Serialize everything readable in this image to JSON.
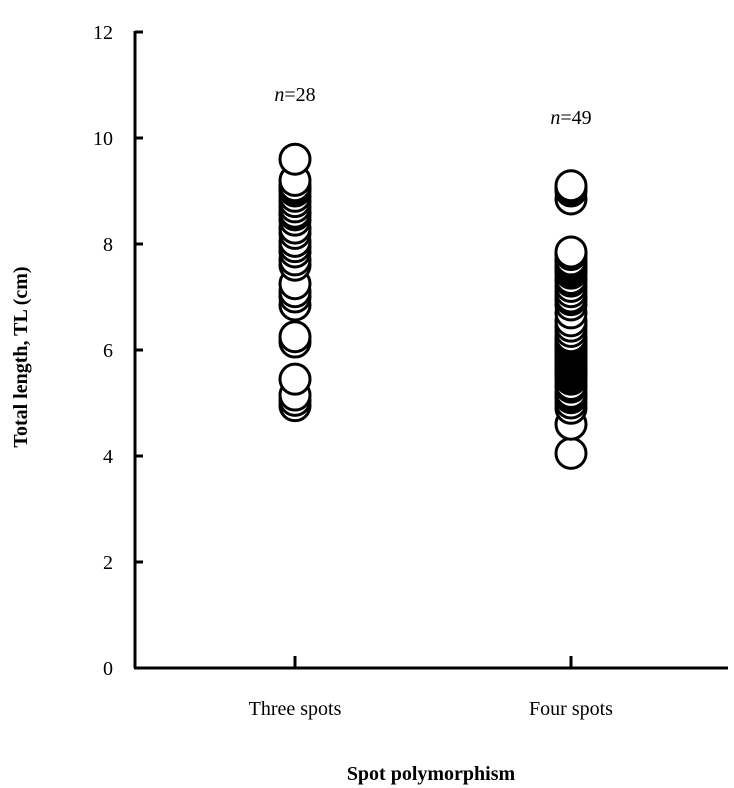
{
  "chart_data": {
    "type": "scatter",
    "xlabel": "Spot polymorphism",
    "ylabel": "Total length, TL (cm)",
    "ylim": [
      0,
      12
    ],
    "yticks": [
      0,
      2,
      4,
      6,
      8,
      10,
      12
    ],
    "grid": false,
    "categories": [
      "Three spots",
      "Four spots"
    ],
    "series": [
      {
        "category": "Three spots",
        "n_prefix": "n",
        "n_value": "=28",
        "values": [
          4.95,
          5.05,
          5.15,
          5.45,
          6.15,
          6.25,
          6.85,
          7.0,
          7.1,
          7.25,
          7.6,
          7.7,
          7.85,
          7.95,
          8.05,
          8.2,
          8.3,
          8.45,
          8.55,
          8.6,
          8.7,
          8.8,
          8.9,
          9.0,
          9.05,
          9.1,
          9.2,
          9.6
        ]
      },
      {
        "category": "Four spots",
        "n_prefix": "n",
        "n_value": "=49",
        "values": [
          4.05,
          4.6,
          4.9,
          5.0,
          5.1,
          5.15,
          5.2,
          5.3,
          5.35,
          5.45,
          5.5,
          5.55,
          5.6,
          5.65,
          5.7,
          5.75,
          5.8,
          5.85,
          5.9,
          5.95,
          6.0,
          6.05,
          6.1,
          6.15,
          6.2,
          6.25,
          6.35,
          6.45,
          6.55,
          6.7,
          6.85,
          6.95,
          7.0,
          7.1,
          7.2,
          7.3,
          7.35,
          7.45,
          7.5,
          7.55,
          7.6,
          7.65,
          7.7,
          7.8,
          7.85,
          8.85,
          9.0,
          9.05,
          9.1
        ]
      }
    ]
  }
}
